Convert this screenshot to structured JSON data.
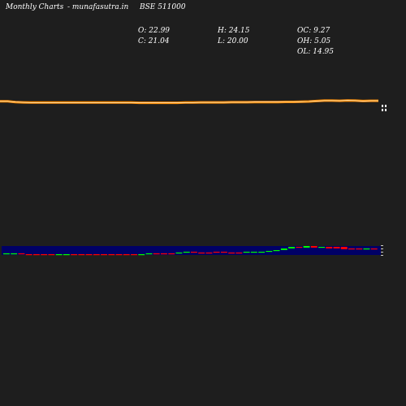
{
  "header": {
    "period_label": "Monthly Charts",
    "site_label": "- munafasutra.in",
    "symbol_label": "BSE 511000"
  },
  "ohlc": {
    "open": "O: 22.99",
    "close": "C: 21.04",
    "high": "H: 24.15",
    "low": "L: 20.00",
    "oc": "OC: 9.27",
    "oh": "OH: 5.05",
    "ol": "OL: 14.95"
  },
  "colors": {
    "background": "#1e1e1e",
    "price_line": "#ff8c00",
    "price_highlight": "#ffffff",
    "volume_band": "#000066",
    "up_candle": "#00ff00",
    "down_candle": "#ff0000"
  },
  "chart_data": {
    "type": "line",
    "price_series": [
      1.0,
      1.0,
      0.6,
      0.4,
      0.3,
      0.3,
      0.3,
      0.3,
      0.3,
      0.3,
      0.3,
      0.3,
      0.3,
      0.3,
      0.3,
      0.3,
      0.3,
      0.3,
      0.2,
      0.2,
      0.2,
      0.2,
      0.2,
      0.2,
      0.3,
      0.3,
      0.4,
      0.4,
      0.4,
      0.4,
      0.5,
      0.5,
      0.5,
      0.6,
      0.6,
      0.6,
      0.6,
      0.7,
      0.7,
      0.8,
      0.9,
      1.2,
      1.4,
      1.4,
      1.3,
      1.5,
      1.4,
      1.2,
      1.3,
      1.3
    ],
    "volume_candles": [
      {
        "o": 2,
        "c": 2,
        "up": true
      },
      {
        "o": 2,
        "c": 2,
        "up": true
      },
      {
        "o": 2,
        "c": 1,
        "up": false
      },
      {
        "o": 1,
        "c": 1,
        "up": false
      },
      {
        "o": 1,
        "c": 1,
        "up": false
      },
      {
        "o": 1,
        "c": 1,
        "up": false
      },
      {
        "o": 1,
        "c": 1,
        "up": false
      },
      {
        "o": 1,
        "c": 1,
        "up": true
      },
      {
        "o": 1,
        "c": 1,
        "up": true
      },
      {
        "o": 1,
        "c": 1,
        "up": false
      },
      {
        "o": 1,
        "c": 1,
        "up": false
      },
      {
        "o": 1,
        "c": 1,
        "up": false
      },
      {
        "o": 1,
        "c": 1,
        "up": false
      },
      {
        "o": 1,
        "c": 1,
        "up": false
      },
      {
        "o": 1,
        "c": 1,
        "up": false
      },
      {
        "o": 1,
        "c": 1,
        "up": false
      },
      {
        "o": 1,
        "c": 1,
        "up": false
      },
      {
        "o": 1,
        "c": 1,
        "up": false
      },
      {
        "o": 1,
        "c": 1,
        "up": true
      },
      {
        "o": 1,
        "c": 2,
        "up": true
      },
      {
        "o": 2,
        "c": 2,
        "up": false
      },
      {
        "o": 2,
        "c": 2,
        "up": false
      },
      {
        "o": 2,
        "c": 2,
        "up": false
      },
      {
        "o": 2,
        "c": 3,
        "up": true
      },
      {
        "o": 3,
        "c": 4,
        "up": true
      },
      {
        "o": 4,
        "c": 3,
        "up": false
      },
      {
        "o": 3,
        "c": 3,
        "up": false
      },
      {
        "o": 3,
        "c": 3,
        "up": false
      },
      {
        "o": 3,
        "c": 4,
        "up": false
      },
      {
        "o": 4,
        "c": 3,
        "up": false
      },
      {
        "o": 3,
        "c": 3,
        "up": false
      },
      {
        "o": 3,
        "c": 3,
        "up": false
      },
      {
        "o": 3,
        "c": 4,
        "up": true
      },
      {
        "o": 4,
        "c": 4,
        "up": true
      },
      {
        "o": 4,
        "c": 4,
        "up": true
      },
      {
        "o": 4,
        "c": 5,
        "up": true
      },
      {
        "o": 5,
        "c": 6,
        "up": true
      },
      {
        "o": 6,
        "c": 8,
        "up": true
      },
      {
        "o": 8,
        "c": 10,
        "up": true
      },
      {
        "o": 10,
        "c": 9,
        "up": false
      },
      {
        "o": 9,
        "c": 11,
        "up": true
      },
      {
        "o": 11,
        "c": 9,
        "up": false
      },
      {
        "o": 9,
        "c": 10,
        "up": true
      },
      {
        "o": 10,
        "c": 8,
        "up": false
      },
      {
        "o": 8,
        "c": 10,
        "up": false
      },
      {
        "o": 10,
        "c": 7,
        "up": false
      },
      {
        "o": 7,
        "c": 8,
        "up": false
      },
      {
        "o": 8,
        "c": 7,
        "up": false
      },
      {
        "o": 7,
        "c": 8,
        "up": true
      },
      {
        "o": 8,
        "c": 7,
        "up": false
      }
    ]
  }
}
